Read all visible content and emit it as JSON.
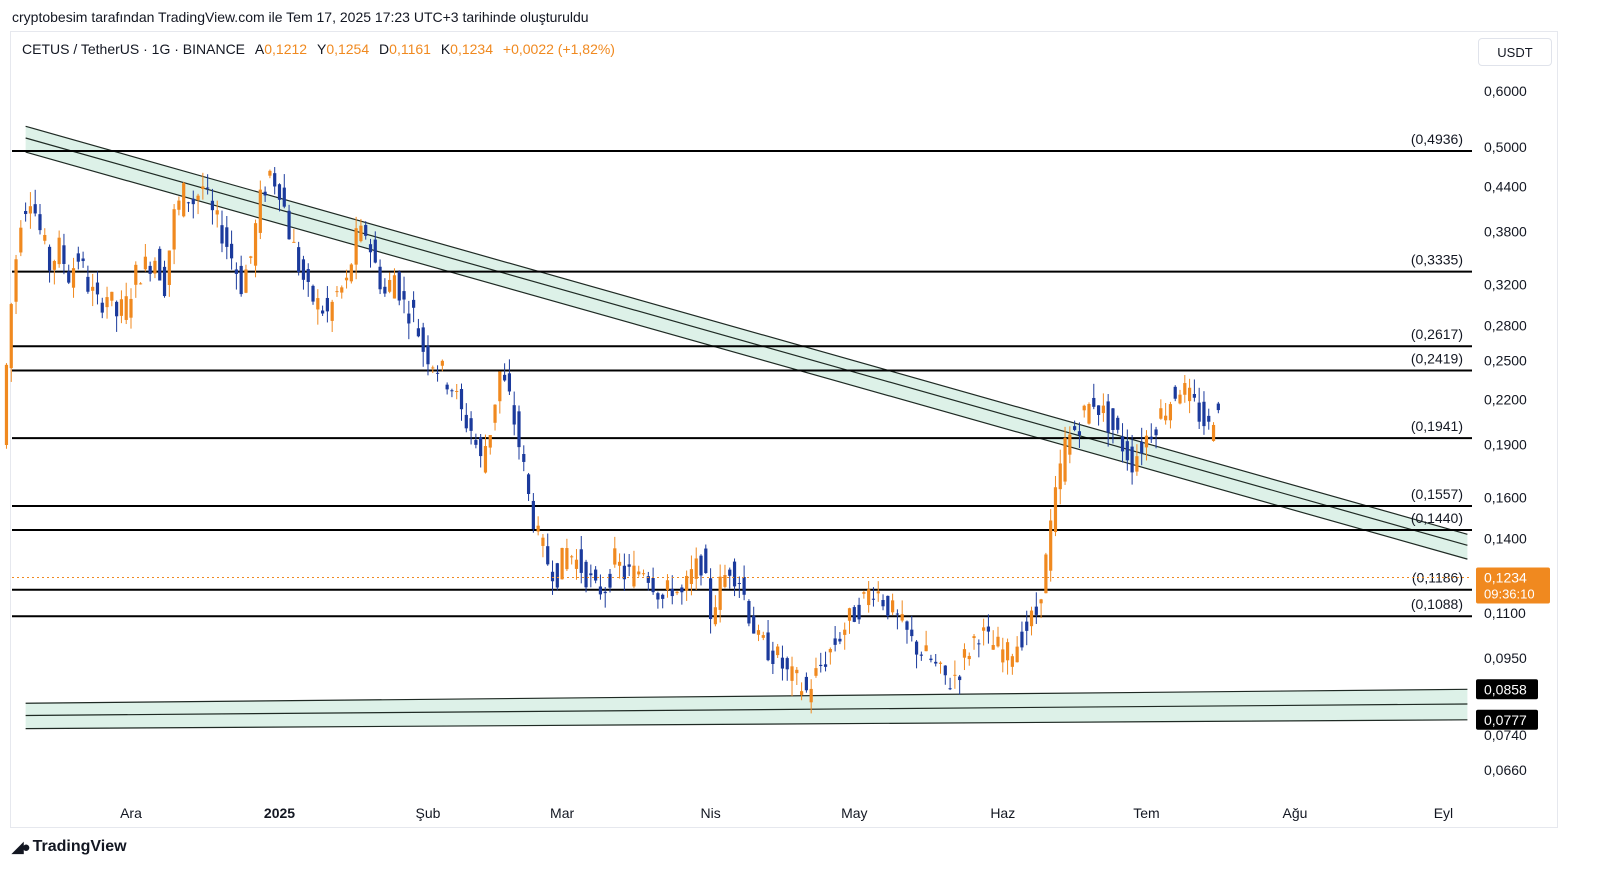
{
  "header": {
    "caption": "cryptobesim tarafından TradingView.com ile Tem 17, 2025 17:23 UTC+3 tarihinde oluşturuldu"
  },
  "symbol": {
    "name": "CETUS / TetherUS · 1G · BINANCE",
    "open_key": "A",
    "open_val": "0,1212",
    "high_key": "Y",
    "high_val": "0,1254",
    "low_key": "D",
    "low_val": "0,1161",
    "close_key": "K",
    "close_val": "0,1234",
    "change": "+0,0022 (+1,82%)"
  },
  "currency_button": "USDT",
  "footer": {
    "logo_text": "TradingView"
  },
  "colors": {
    "up": "#f0891f",
    "down": "#1b3a9c",
    "channel_fill": "#d7eee4",
    "level_line": "#000000",
    "price_tag": "#f0891f",
    "dark_tag": "#000000"
  },
  "chart_data": {
    "type": "candlestick",
    "scale": "log",
    "ylim": [
      0.062,
      0.66
    ],
    "x_axis_labels": [
      "Ara",
      "2025",
      "Şub",
      "Mar",
      "Nis",
      "May",
      "Haz",
      "Tem",
      "Ağu",
      "Eyl"
    ],
    "x_axis_label_dates": [
      "2024-12-01",
      "2025-01-01",
      "2025-02-01",
      "2025-03-01",
      "2025-04-01",
      "2025-05-01",
      "2025-06-01",
      "2025-07-01",
      "2025-08-01",
      "2025-09-01"
    ],
    "y_ticks": [
      {
        "value": 0.6,
        "label": "0,6000"
      },
      {
        "value": 0.5,
        "label": "0,5000"
      },
      {
        "value": 0.44,
        "label": "0,4400"
      },
      {
        "value": 0.38,
        "label": "0,3800"
      },
      {
        "value": 0.32,
        "label": "0,3200"
      },
      {
        "value": 0.28,
        "label": "0,2800"
      },
      {
        "value": 0.25,
        "label": "0,2500"
      },
      {
        "value": 0.22,
        "label": "0,2200"
      },
      {
        "value": 0.19,
        "label": "0,1900"
      },
      {
        "value": 0.16,
        "label": "0,1600"
      },
      {
        "value": 0.14,
        "label": "0,1400"
      },
      {
        "value": 0.11,
        "label": "0,1100"
      },
      {
        "value": 0.095,
        "label": "0,0950"
      },
      {
        "value": 0.074,
        "label": "0,0740"
      },
      {
        "value": 0.066,
        "label": "0,0660"
      }
    ],
    "levels": [
      {
        "value": 0.4936,
        "label": "(0,4936)"
      },
      {
        "value": 0.3335,
        "label": "(0,3335)"
      },
      {
        "value": 0.2617,
        "label": "(0,2617)"
      },
      {
        "value": 0.2419,
        "label": "(0,2419)"
      },
      {
        "value": 0.1941,
        "label": "(0,1941)"
      },
      {
        "value": 0.1557,
        "label": "(0,1557)"
      },
      {
        "value": 0.144,
        "label": "(0,1440)"
      },
      {
        "value": 0.1186,
        "label": "(0,1186)"
      },
      {
        "value": 0.1088,
        "label": "(0,1088)"
      }
    ],
    "last_price": {
      "value": 0.1234,
      "label": "0,1234",
      "countdown": "09:36:10"
    },
    "tags": [
      {
        "value": 0.0858,
        "label": "0,0858"
      },
      {
        "value": 0.0777,
        "label": "0,0777"
      }
    ],
    "descending_channel": {
      "upper": [
        {
          "date": "2024-11-09",
          "value": 0.535
        },
        {
          "date": "2025-09-06",
          "value": 0.142
        }
      ],
      "middle": [
        {
          "date": "2024-11-09",
          "value": 0.515
        },
        {
          "date": "2025-09-06",
          "value": 0.137
        }
      ],
      "lower": [
        {
          "date": "2024-11-09",
          "value": 0.492
        },
        {
          "date": "2025-09-06",
          "value": 0.131
        }
      ]
    },
    "support_channel": {
      "upper": [
        {
          "date": "2024-11-09",
          "value": 0.082
        },
        {
          "date": "2025-09-06",
          "value": 0.0858
        }
      ],
      "middle": [
        {
          "date": "2024-11-09",
          "value": 0.0788
        },
        {
          "date": "2025-09-06",
          "value": 0.0818
        }
      ],
      "lower": [
        {
          "date": "2024-11-09",
          "value": 0.0755
        },
        {
          "date": "2025-09-06",
          "value": 0.0777
        }
      ]
    },
    "price_path_start": "2024-11-05",
    "price_path": [
      0.19,
      0.3,
      0.4,
      0.43,
      0.38,
      0.34,
      0.36,
      0.33,
      0.35,
      0.32,
      0.3,
      0.31,
      0.29,
      0.3,
      0.33,
      0.34,
      0.35,
      0.32,
      0.4,
      0.43,
      0.42,
      0.44,
      0.4,
      0.38,
      0.35,
      0.32,
      0.35,
      0.42,
      0.46,
      0.44,
      0.38,
      0.34,
      0.31,
      0.3,
      0.29,
      0.31,
      0.32,
      0.37,
      0.38,
      0.34,
      0.31,
      0.33,
      0.3,
      0.29,
      0.26,
      0.25,
      0.24,
      0.23,
      0.21,
      0.2,
      0.18,
      0.2,
      0.24,
      0.22,
      0.19,
      0.16,
      0.14,
      0.13,
      0.125,
      0.135,
      0.13,
      0.125,
      0.118,
      0.12,
      0.13,
      0.125,
      0.125,
      0.128,
      0.122,
      0.115,
      0.12,
      0.116,
      0.124,
      0.13,
      0.11,
      0.12,
      0.128,
      0.123,
      0.11,
      0.1,
      0.098,
      0.095,
      0.09,
      0.088,
      0.085,
      0.09,
      0.095,
      0.1,
      0.105,
      0.11,
      0.115,
      0.12,
      0.115,
      0.11,
      0.105,
      0.1,
      0.097,
      0.094,
      0.09,
      0.088,
      0.092,
      0.098,
      0.104,
      0.1,
      0.098,
      0.096,
      0.1,
      0.105,
      0.11,
      0.13,
      0.16,
      0.19,
      0.2,
      0.21,
      0.22,
      0.21,
      0.2,
      0.19,
      0.18,
      0.19,
      0.2,
      0.21,
      0.22,
      0.23,
      0.22,
      0.21,
      0.2,
      0.22,
      0.21,
      0.19,
      0.2,
      0.2,
      0.165,
      0.155,
      0.145,
      0.13,
      0.14,
      0.155,
      0.15,
      0.14,
      0.13,
      0.128,
      0.125,
      0.122,
      0.12,
      0.118,
      0.118,
      0.122,
      0.12,
      0.115,
      0.11,
      0.102,
      0.098,
      0.095,
      0.093,
      0.09,
      0.085,
      0.083,
      0.088,
      0.093,
      0.095,
      0.092,
      0.09,
      0.09,
      0.092,
      0.09,
      0.088,
      0.088,
      0.091,
      0.09,
      0.089,
      0.09,
      0.095,
      0.105,
      0.11,
      0.113,
      0.112,
      0.12,
      0.123,
      0.1234
    ]
  }
}
